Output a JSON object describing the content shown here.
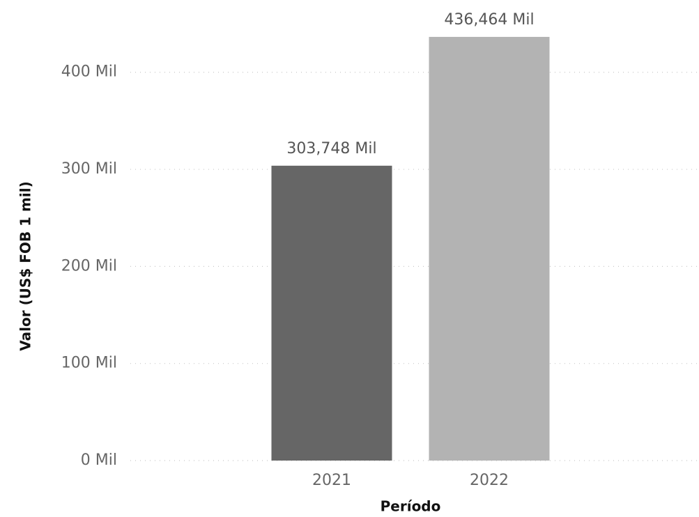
{
  "chart_data": {
    "type": "bar",
    "categories": [
      "2021",
      "2022"
    ],
    "values": [
      303.748,
      436.464
    ],
    "value_labels": [
      "303,748 Mil",
      "436,464 Mil"
    ],
    "colors": [
      "#666666",
      "#b3b3b3"
    ],
    "x_label": "Período",
    "y_label": "Valor (US$ FOB 1 mil)",
    "ylim": [
      0,
      440
    ],
    "yticks": [
      {
        "value": 0,
        "label": "0 Mil"
      },
      {
        "value": 100,
        "label": "100 Mil"
      },
      {
        "value": 200,
        "label": "200 Mil"
      },
      {
        "value": 300,
        "label": "300 Mil"
      },
      {
        "value": 400,
        "label": "400 Mil"
      }
    ],
    "grid": true
  }
}
